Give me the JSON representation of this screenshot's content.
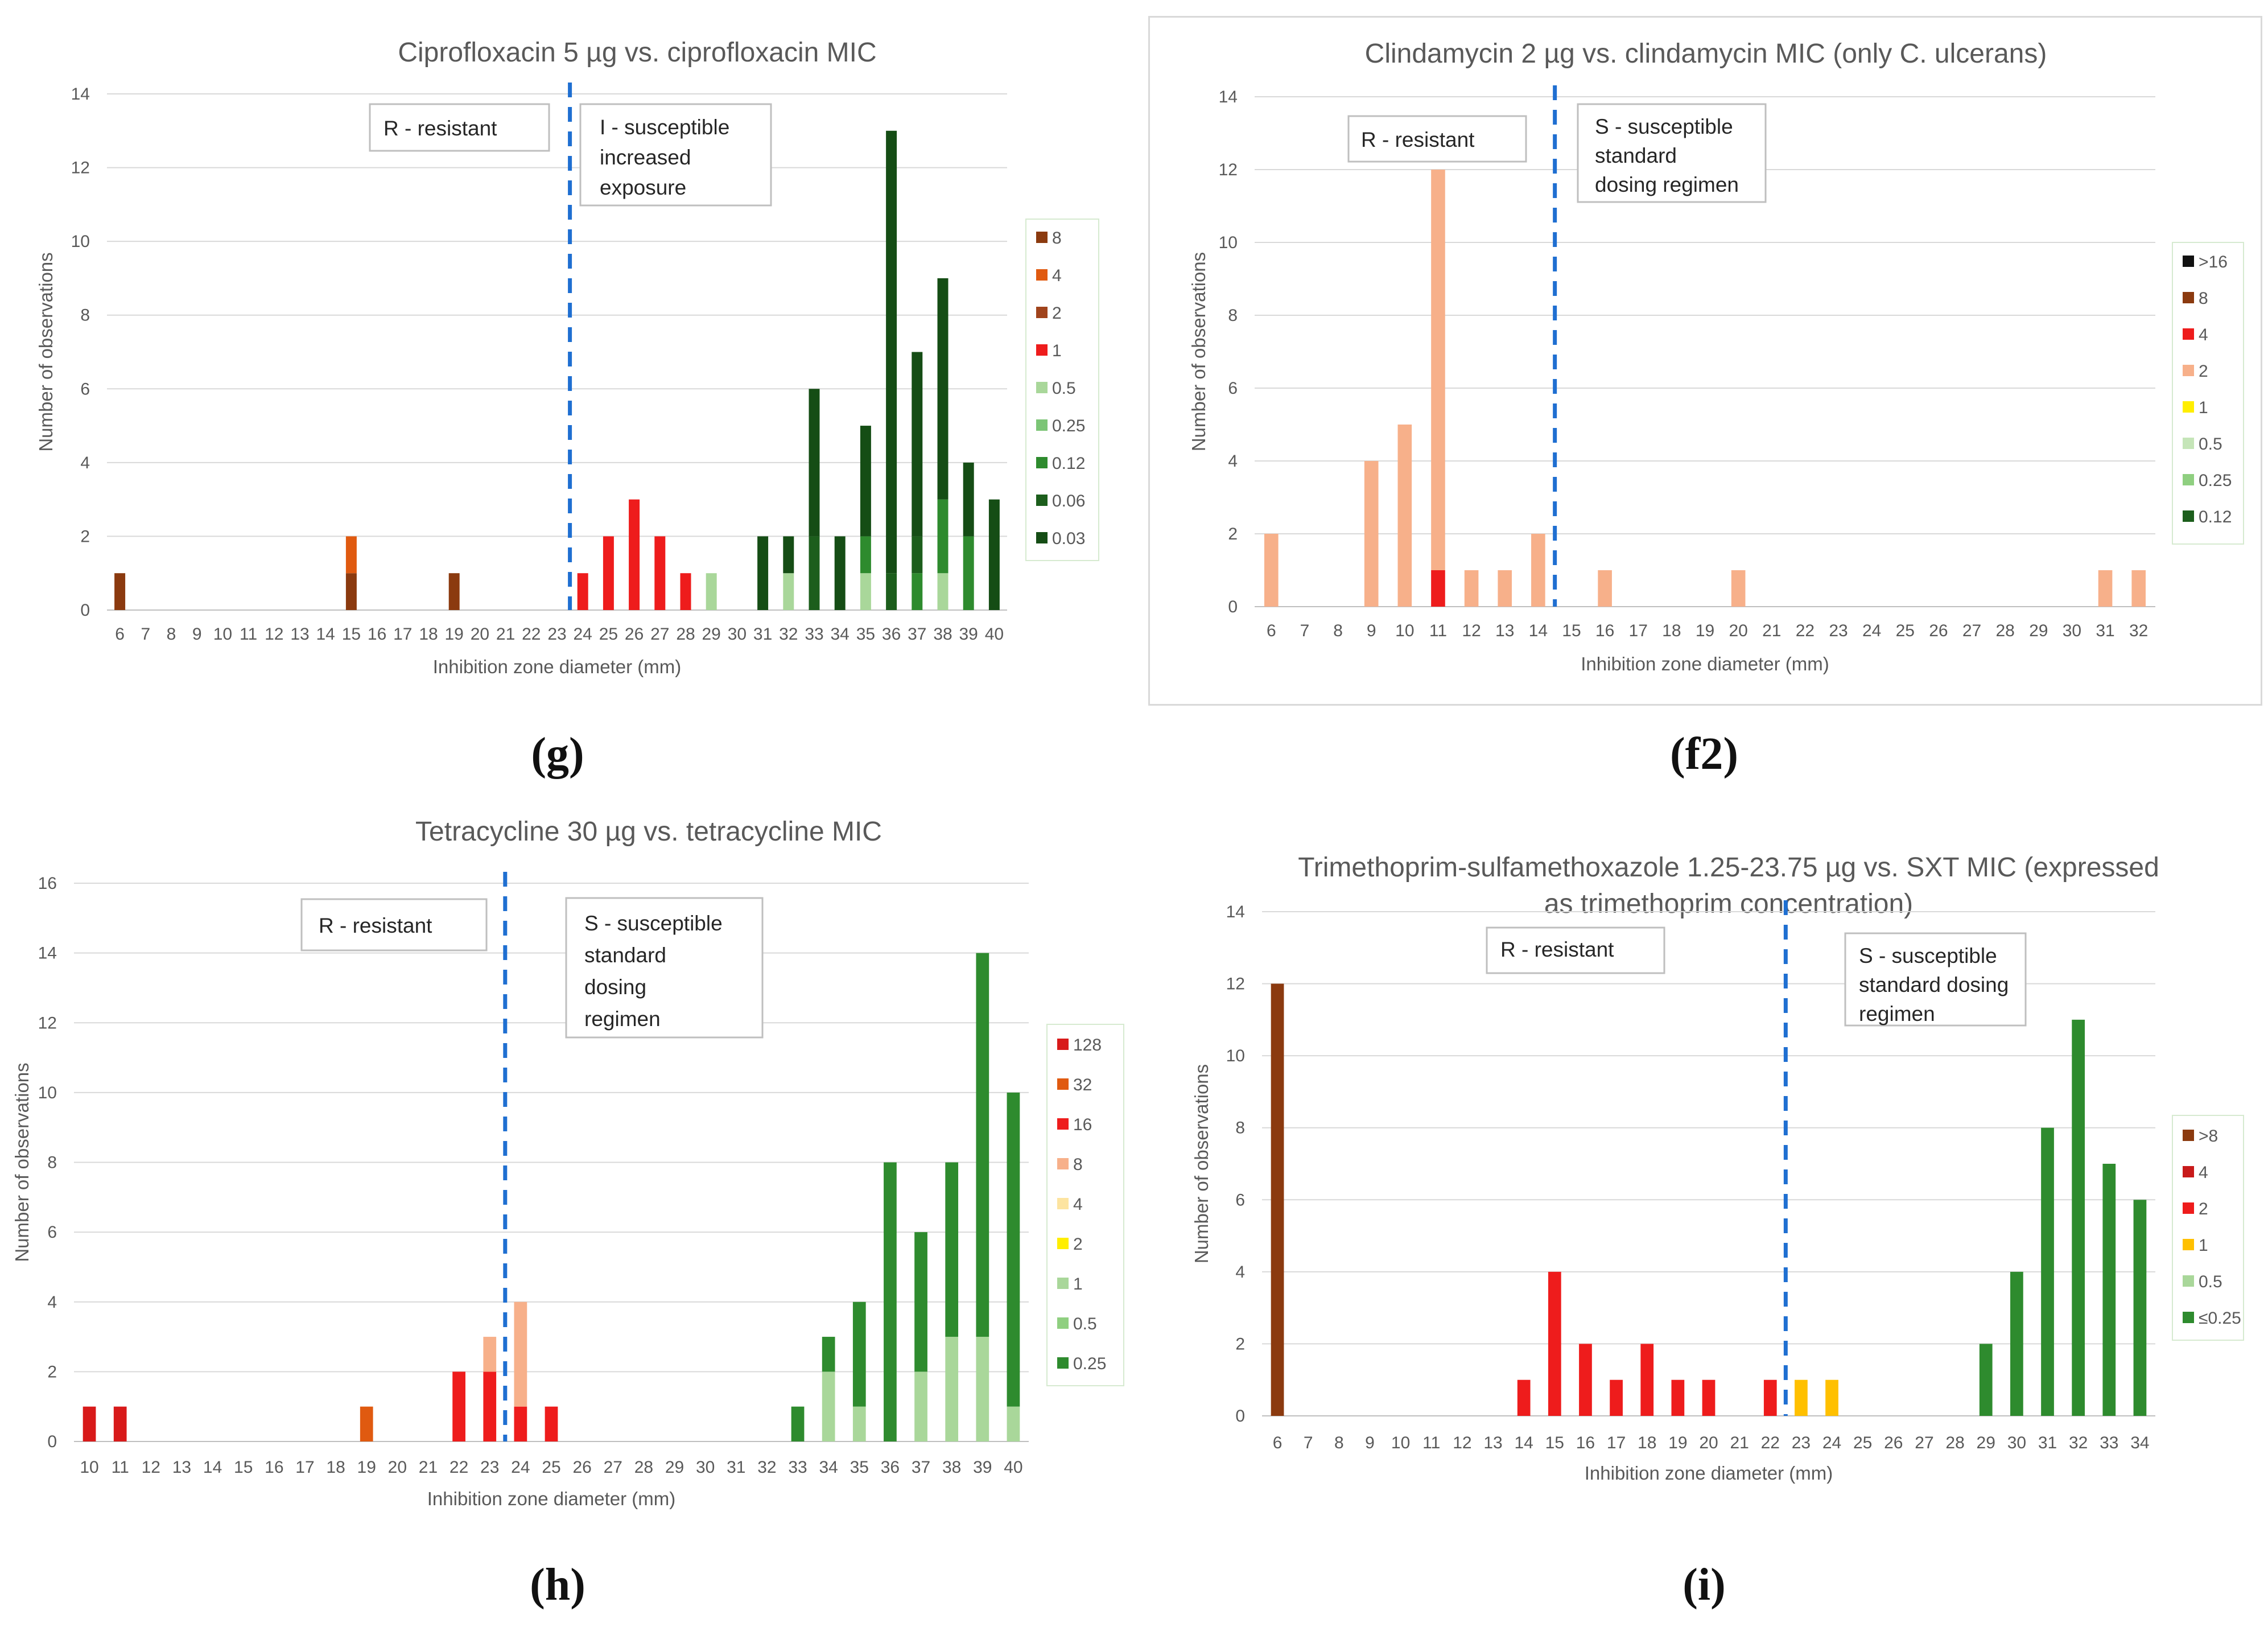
{
  "panels": [
    {
      "id": "g",
      "label": "(g)",
      "framed": false,
      "chart_data": {
        "type": "bar",
        "stacked": true,
        "title": "Ciprofloxacin 5 µg vs. ciprofloxacin MIC",
        "xlabel": "Inhibition zone diameter (mm)",
        "ylabel": "Number of observations",
        "ylim": [
          0,
          14
        ],
        "yticks": [
          0,
          2,
          4,
          6,
          8,
          10,
          12,
          14
        ],
        "x_start": 6,
        "x_end": 40,
        "breakpoint": 23.5,
        "annotations": [
          {
            "lines": [
              "R - resistant"
            ]
          },
          {
            "lines": [
              "I - susceptible",
              "increased",
              "exposure"
            ]
          }
        ],
        "series": [
          {
            "name": "8",
            "color": "#8b3a0f",
            "points": [
              [
                6,
                1
              ],
              [
                15,
                1
              ],
              [
                19,
                1
              ]
            ]
          },
          {
            "name": "4",
            "color": "#e05a10",
            "points": [
              [
                15,
                1
              ]
            ]
          },
          {
            "name": "2",
            "color": "#a0431c",
            "points": []
          },
          {
            "name": "1",
            "color": "#ee1c1c",
            "points": [
              [
                24,
                1
              ],
              [
                25,
                2
              ],
              [
                26,
                3
              ],
              [
                27,
                2
              ],
              [
                28,
                1
              ]
            ]
          },
          {
            "name": "0.5",
            "color": "#a9d79a",
            "points": [
              [
                29,
                1
              ],
              [
                32,
                1
              ],
              [
                35,
                1
              ],
              [
                38,
                1
              ]
            ]
          },
          {
            "name": "0.25",
            "color": "#7cc576",
            "points": []
          },
          {
            "name": "0.12",
            "color": "#2e8b2e",
            "points": [
              [
                35,
                1
              ],
              [
                37,
                1
              ],
              [
                38,
                2
              ],
              [
                39,
                2
              ]
            ]
          },
          {
            "name": "0.06",
            "color": "#1c5e1c",
            "points": [
              [
                33,
                2
              ],
              [
                36,
                1
              ],
              [
                37,
                1
              ]
            ]
          },
          {
            "name": "0.03",
            "color": "#154d15",
            "points": [
              [
                31,
                2
              ],
              [
                32,
                1
              ],
              [
                33,
                4
              ],
              [
                34,
                2
              ],
              [
                35,
                3
              ],
              [
                36,
                12
              ],
              [
                37,
                5
              ],
              [
                38,
                6
              ],
              [
                39,
                2
              ],
              [
                40,
                3
              ]
            ]
          }
        ]
      }
    },
    {
      "id": "f2",
      "label": "(f2)",
      "framed": true,
      "chart_data": {
        "type": "bar",
        "stacked": true,
        "title": "Clindamycin 2 µg vs. clindamycin MIC (only C. ulcerans)",
        "xlabel": "Inhibition zone diameter (mm)",
        "ylabel": "Number of observations",
        "ylim": [
          0,
          14
        ],
        "yticks": [
          0,
          2,
          4,
          6,
          8,
          10,
          12,
          14
        ],
        "x_start": 6,
        "x_end": 32,
        "breakpoint": 14.5,
        "annotations": [
          {
            "lines": [
              "R - resistant"
            ]
          },
          {
            "lines": [
              "S - susceptible",
              "standard",
              "dosing regimen"
            ]
          }
        ],
        "series": [
          {
            "name": ">16",
            "color": "#111111",
            "points": []
          },
          {
            "name": "8",
            "color": "#8b3a0f",
            "points": []
          },
          {
            "name": "4",
            "color": "#ee1c1c",
            "points": [
              [
                11,
                1
              ]
            ]
          },
          {
            "name": "2",
            "color": "#f7b08a",
            "points": [
              [
                6,
                2
              ],
              [
                9,
                4
              ],
              [
                10,
                5
              ],
              [
                11,
                11
              ],
              [
                12,
                1
              ],
              [
                13,
                1
              ],
              [
                14,
                2
              ],
              [
                16,
                1
              ],
              [
                20,
                1
              ],
              [
                31,
                1
              ],
              [
                32,
                1
              ]
            ]
          },
          {
            "name": "1",
            "color": "#ffee00",
            "points": []
          },
          {
            "name": "0.5",
            "color": "#c5e5b8",
            "points": []
          },
          {
            "name": "0.25",
            "color": "#8fcf80",
            "points": []
          },
          {
            "name": "0.12",
            "color": "#1c5e1c",
            "points": []
          }
        ]
      }
    },
    {
      "id": "h",
      "label": "(h)",
      "framed": false,
      "chart_data": {
        "type": "bar",
        "stacked": true,
        "title": "Tetracycline 30 µg vs. tetracycline MIC",
        "xlabel": "Inhibition zone diameter (mm)",
        "ylabel": "Number of observations",
        "ylim": [
          0,
          16
        ],
        "yticks": [
          0,
          2,
          4,
          6,
          8,
          10,
          12,
          14,
          16
        ],
        "x_start": 10,
        "x_end": 40,
        "breakpoint": 23.5,
        "annotations": [
          {
            "lines": [
              "R - resistant"
            ]
          },
          {
            "lines": [
              "S - susceptible",
              "standard",
              "dosing",
              "regimen"
            ]
          }
        ],
        "series": [
          {
            "name": "128",
            "color": "#d81a1a",
            "points": [
              [
                10,
                1
              ],
              [
                11,
                1
              ]
            ]
          },
          {
            "name": "32",
            "color": "#e05a10",
            "points": [
              [
                19,
                1
              ]
            ]
          },
          {
            "name": "16",
            "color": "#ee1c1c",
            "points": [
              [
                22,
                2
              ],
              [
                23,
                2
              ],
              [
                24,
                1
              ],
              [
                25,
                1
              ]
            ]
          },
          {
            "name": "8",
            "color": "#f7b08a",
            "points": [
              [
                23,
                1
              ],
              [
                24,
                3
              ]
            ]
          },
          {
            "name": "4",
            "color": "#fde4a0",
            "points": []
          },
          {
            "name": "2",
            "color": "#ffee00",
            "points": []
          },
          {
            "name": "1",
            "color": "#a9d79a",
            "points": [
              [
                34,
                2
              ],
              [
                35,
                1
              ],
              [
                37,
                2
              ],
              [
                38,
                3
              ],
              [
                39,
                3
              ],
              [
                40,
                1
              ]
            ]
          },
          {
            "name": "0.5",
            "color": "#8fcf80",
            "points": []
          },
          {
            "name": "0.25",
            "color": "#2e8b2e",
            "points": [
              [
                33,
                1
              ],
              [
                34,
                1
              ],
              [
                35,
                3
              ],
              [
                36,
                8
              ],
              [
                37,
                4
              ],
              [
                38,
                5
              ],
              [
                39,
                11
              ],
              [
                40,
                9
              ]
            ]
          }
        ]
      }
    },
    {
      "id": "i",
      "label": "(i)",
      "framed": false,
      "chart_data": {
        "type": "bar",
        "stacked": true,
        "title_lines": [
          "Trimethoprim-sulfamethoxazole 1.25-23.75 µg vs. SXT MIC (expressed",
          "as trimethoprim concentration)"
        ],
        "xlabel": "Inhibition zone diameter (mm)",
        "ylabel": "Number of observations",
        "ylim": [
          0,
          14
        ],
        "yticks": [
          0,
          2,
          4,
          6,
          8,
          10,
          12,
          14
        ],
        "x_start": 6,
        "x_end": 34,
        "breakpoint": 22.5,
        "annotations": [
          {
            "lines": [
              "R - resistant"
            ]
          },
          {
            "lines": [
              "S - susceptible",
              "standard dosing",
              "regimen"
            ]
          }
        ],
        "series": [
          {
            "name": ">8",
            "color": "#8b3a0f",
            "points": [
              [
                6,
                12
              ]
            ]
          },
          {
            "name": "4",
            "color": "#c81a1a",
            "points": []
          },
          {
            "name": "2",
            "color": "#ee1c1c",
            "points": [
              [
                14,
                1
              ],
              [
                15,
                4
              ],
              [
                16,
                2
              ],
              [
                17,
                1
              ],
              [
                18,
                2
              ],
              [
                19,
                1
              ],
              [
                20,
                1
              ],
              [
                22,
                1
              ]
            ]
          },
          {
            "name": "1",
            "color": "#ffc000",
            "points": [
              [
                23,
                1
              ],
              [
                24,
                1
              ]
            ]
          },
          {
            "name": "0.5",
            "color": "#a9d79a",
            "points": []
          },
          {
            "name": "≤0.25",
            "color": "#2e8b2e",
            "points": [
              [
                29,
                2
              ],
              [
                30,
                4
              ],
              [
                31,
                8
              ],
              [
                32,
                11
              ],
              [
                33,
                7
              ],
              [
                34,
                6
              ]
            ]
          }
        ]
      }
    }
  ]
}
